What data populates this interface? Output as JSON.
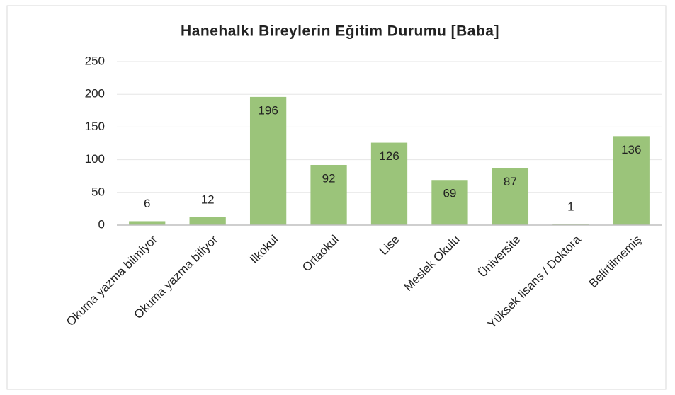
{
  "chart_data": {
    "type": "bar",
    "title": "Hanehalkı Bireylerin Eğitim Durumu [Baba]",
    "categories": [
      "Okuma yazma bilmiyor",
      "Okuma yazma biliyor",
      "İlkokul",
      "Ortaokul",
      "Lise",
      "Meslek Okulu",
      "Üniversite",
      "Yüksek lisans / Doktora",
      "Belirtilmemiş"
    ],
    "values": [
      6,
      12,
      196,
      92,
      126,
      69,
      87,
      1,
      136
    ],
    "color": "#9bc47a",
    "ylim": [
      0,
      250
    ],
    "yticks": [
      0,
      50,
      100,
      150,
      200,
      250
    ],
    "grid": true
  }
}
